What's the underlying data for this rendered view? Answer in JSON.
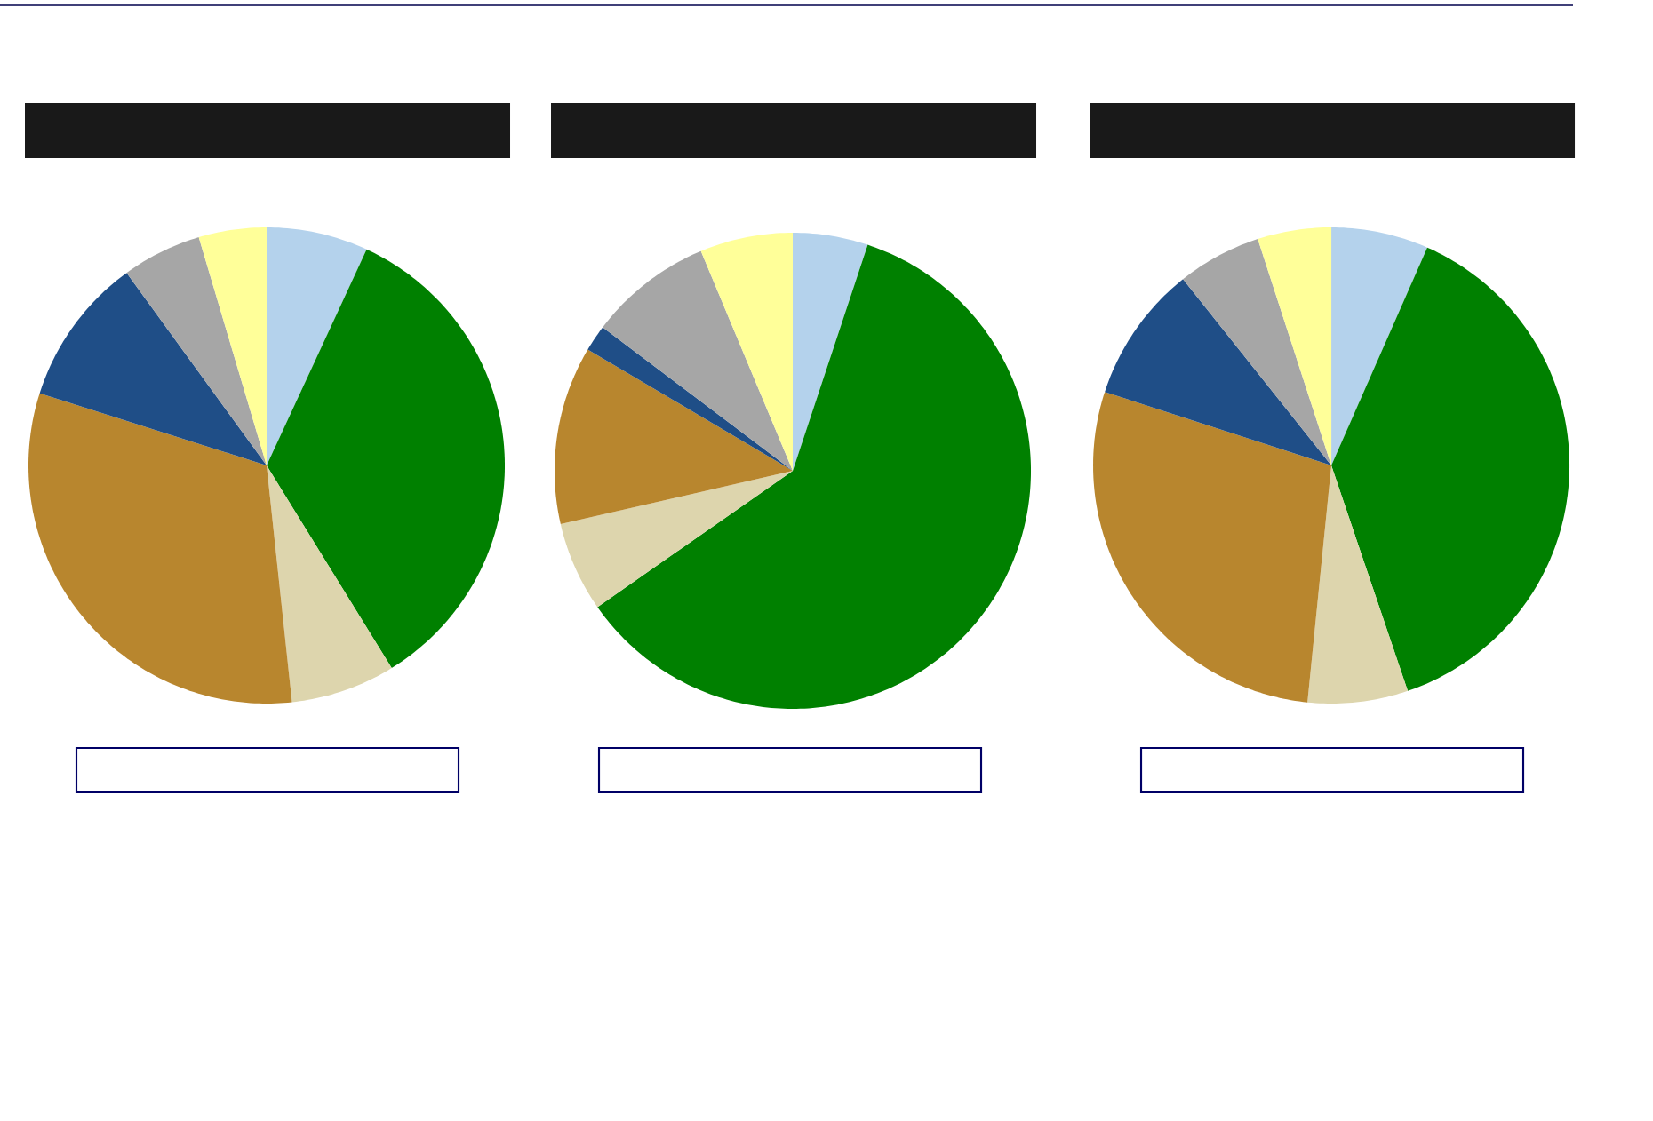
{
  "chart_data": [
    {
      "type": "pie",
      "categories": [
        null,
        null,
        null,
        null,
        null,
        null,
        null
      ],
      "values": [
        6.9,
        34.3,
        7.1,
        31.6,
        10.1,
        5.4,
        4.6
      ],
      "colors": [
        "#b4d2ec",
        "#008000",
        "#ddd5ad",
        "#b8862e",
        "#1f4e87",
        "#a6a6a6",
        "#ffff99"
      ]
    },
    {
      "type": "pie",
      "categories": [
        null,
        null,
        null,
        null,
        null,
        null,
        null
      ],
      "values": [
        5.1,
        60.2,
        6.1,
        12.1,
        1.8,
        8.4,
        6.3
      ],
      "colors": [
        "#b4d2ec",
        "#008000",
        "#ddd5ad",
        "#b8862e",
        "#1f4e87",
        "#a6a6a6",
        "#ffff99"
      ]
    },
    {
      "type": "pie",
      "categories": [
        null,
        null,
        null,
        null,
        null,
        null,
        null
      ],
      "values": [
        6.6,
        38.2,
        6.8,
        28.4,
        9.3,
        5.7,
        5.0
      ],
      "colors": [
        "#b4d2ec",
        "#008000",
        "#ddd5ad",
        "#b8862e",
        "#1f4e87",
        "#a6a6a6",
        "#ffff99"
      ]
    }
  ]
}
